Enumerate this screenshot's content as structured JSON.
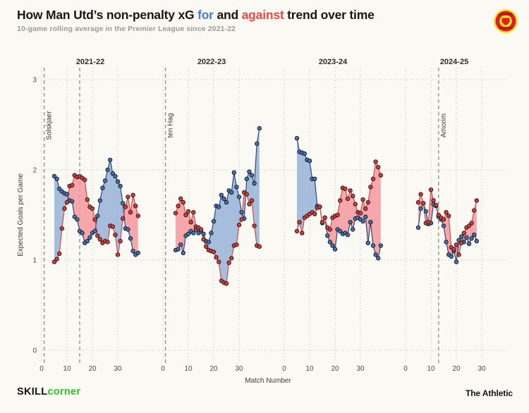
{
  "header": {
    "title_part1": "How Man Utd’s non-penalty xG ",
    "title_for": "for",
    "title_part2": " and ",
    "title_against": "against",
    "title_part3": " trend over time",
    "subtitle": "10-game rolling average in the Premier League since 2021-22",
    "crest_icon": "manchester-united-crest"
  },
  "footer": {
    "brand_bold": "SKILL",
    "brand_accent": "corner",
    "credit": "The Athletic"
  },
  "colors": {
    "title_for": "#4e7dc6",
    "title_against": "#ee4742",
    "brand_accent": "#2fc321",
    "for_fill": "#92aed6",
    "for_line": "#2e4a74",
    "for_marker": "#4a73a8",
    "for_marker_edge": "#141f38",
    "against_fill": "#f3999f",
    "against_line": "#c9504b",
    "against_marker": "#c64540",
    "against_marker_edge": "#451110",
    "grid": "#c9c8c0",
    "manager_line": "#8b8b85",
    "axis_text": "#4a4a46",
    "label_text": "#3c3c38",
    "panel_title_text": "#2b2b2b"
  },
  "chart_data": {
    "type": "area",
    "subtype": "rolling-average fill-between (xG for vs xG against)",
    "ylabel": "Expected Goals per Game",
    "xlabel": "Match Number",
    "ylim": [
      0,
      3
    ],
    "yticks": [
      0,
      1,
      2,
      3
    ],
    "xticks": [
      0,
      10,
      20,
      30
    ],
    "grid": "dotted",
    "legend": "in title: blue = for, red = against",
    "series_names": [
      "xG for (10-game rolling avg)",
      "xG against (10-game rolling avg)"
    ],
    "panels": [
      {
        "title": "2021-22",
        "start_match": 5,
        "managers": [
          {
            "label": "Solskjaer",
            "match": 1
          },
          {
            "label": "",
            "match": 15
          }
        ],
        "for": [
          1.93,
          1.9,
          1.79,
          1.76,
          1.74,
          1.73,
          1.66,
          1.65,
          1.48,
          1.45,
          1.32,
          1.3,
          1.19,
          1.21,
          1.25,
          1.3,
          1.32,
          1.49,
          1.66,
          1.8,
          1.88,
          2.0,
          2.11,
          1.96,
          1.93,
          1.87,
          1.82,
          1.63,
          1.35,
          1.34,
          1.24,
          1.1,
          1.06,
          1.08
        ],
        "against": [
          0.98,
          1.01,
          1.07,
          1.35,
          1.57,
          1.64,
          1.82,
          1.83,
          1.94,
          1.92,
          1.93,
          1.91,
          1.89,
          1.67,
          1.59,
          1.57,
          1.45,
          1.27,
          1.23,
          1.19,
          1.21,
          1.2,
          1.38,
          1.37,
          1.28,
          1.06,
          1.21,
          1.46,
          1.59,
          1.7,
          1.53,
          1.72,
          1.6,
          1.49
        ]
      },
      {
        "title": "2022-23",
        "start_match": 5,
        "managers": [
          {
            "label": "ten Hag",
            "match": 1
          }
        ],
        "for": [
          1.11,
          1.12,
          1.17,
          1.08,
          1.27,
          1.29,
          1.32,
          1.3,
          1.34,
          1.3,
          1.32,
          1.29,
          1.21,
          1.2,
          1.3,
          1.43,
          1.6,
          1.59,
          1.72,
          1.68,
          1.64,
          1.77,
          1.75,
          1.97,
          1.81,
          1.7,
          1.53,
          1.46,
          1.9,
          1.98,
          1.94,
          1.85,
          2.29,
          2.46
        ],
        "against": [
          1.52,
          1.6,
          1.68,
          1.64,
          1.5,
          1.54,
          1.42,
          1.53,
          1.37,
          1.36,
          1.34,
          1.23,
          1.15,
          1.11,
          1.1,
          1.09,
          1.03,
          0.98,
          0.77,
          0.75,
          0.74,
          0.97,
          1.02,
          1.16,
          1.17,
          1.39,
          1.45,
          1.75,
          1.73,
          1.62,
          1.66,
          1.38,
          1.16,
          1.15
        ]
      },
      {
        "title": "2023-24",
        "start_match": 5,
        "managers": [],
        "for": [
          2.35,
          2.2,
          2.19,
          2.18,
          2.11,
          2.1,
          1.9,
          1.9,
          1.6,
          1.59,
          1.41,
          1.47,
          1.27,
          1.2,
          1.16,
          1.12,
          1.34,
          1.32,
          1.29,
          1.3,
          1.28,
          1.42,
          1.34,
          1.46,
          1.47,
          1.45,
          1.43,
          1.48,
          1.19,
          1.42,
          1.16,
          1.06,
          1.02,
          1.16
        ],
        "against": [
          1.32,
          1.42,
          1.3,
          1.47,
          1.49,
          1.51,
          1.53,
          1.51,
          1.58,
          1.59,
          1.42,
          1.47,
          1.36,
          1.34,
          1.47,
          1.49,
          1.5,
          1.66,
          1.8,
          1.79,
          1.68,
          1.77,
          1.71,
          1.62,
          1.53,
          1.52,
          1.67,
          1.57,
          1.64,
          1.81,
          1.9,
          2.09,
          2.03,
          1.94
        ]
      },
      {
        "title": "2024-25",
        "start_match": 5,
        "managers": [
          {
            "label": "Amorim",
            "match": 13
          }
        ],
        "for": [
          1.36,
          1.57,
          1.63,
          1.54,
          1.4,
          1.41,
          1.62,
          1.6,
          1.48,
          1.45,
          1.38,
          1.2,
          1.06,
          1.04,
          1.1,
          0.98,
          1.22,
          1.26,
          1.2,
          1.25,
          1.18,
          1.24,
          1.28,
          1.21
        ],
        "against": [
          1.64,
          1.73,
          1.63,
          1.41,
          1.42,
          1.78,
          1.66,
          1.61,
          1.5,
          1.47,
          1.45,
          1.53,
          1.49,
          1.14,
          1.12,
          1.17,
          1.06,
          1.19,
          1.3,
          1.36,
          1.38,
          1.41,
          1.55,
          1.66
        ]
      }
    ]
  }
}
